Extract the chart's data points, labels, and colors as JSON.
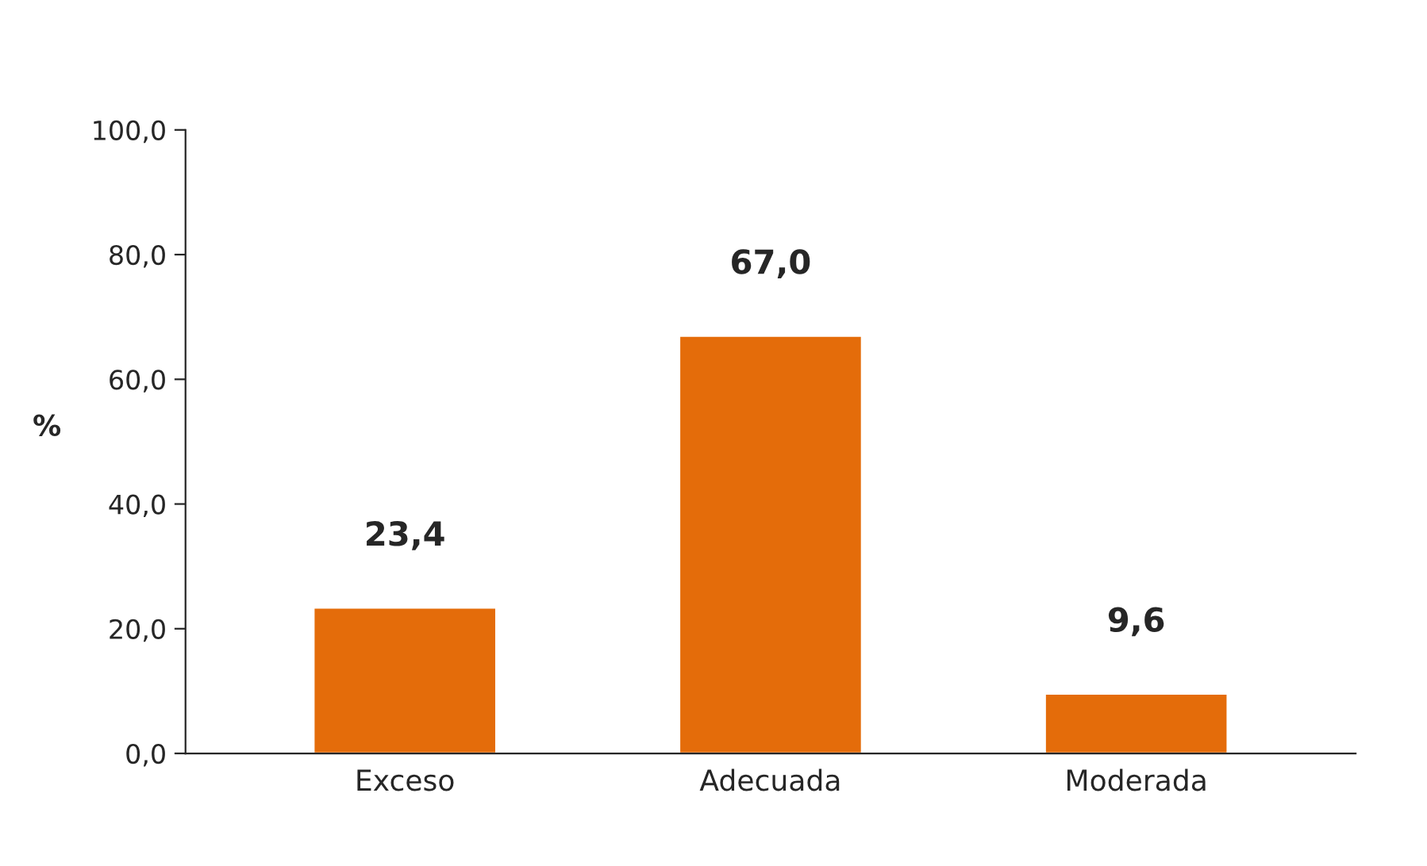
{
  "chart_data": {
    "type": "bar",
    "ylabel": "%",
    "categories": [
      "Exceso",
      "Adecuada",
      "Moderada"
    ],
    "values": [
      23.4,
      67.0,
      9.6
    ],
    "value_labels": [
      "23,4",
      "67,0",
      "9,6"
    ],
    "color": "#e46c0a",
    "ylim": [
      0,
      100
    ],
    "yticks": [
      {
        "value": 0,
        "label": "0,0"
      },
      {
        "value": 20,
        "label": "20,0"
      },
      {
        "value": 40,
        "label": "40,0"
      },
      {
        "value": 60,
        "label": "60,0"
      },
      {
        "value": 80,
        "label": "80,0"
      },
      {
        "value": 100,
        "label": "100,0"
      }
    ],
    "grid": false,
    "legend": false
  }
}
